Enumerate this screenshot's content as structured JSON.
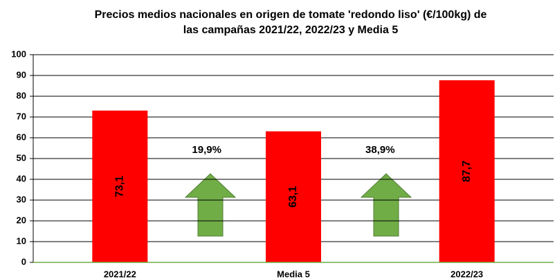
{
  "chart_data": {
    "type": "bar",
    "title": [
      "Precios medios nacionales en origen de tomate 'redondo liso' (€/100kg) de",
      "las campañas 2021/22, 2022/23 y Media 5"
    ],
    "categories": [
      "2021/22",
      "Media 5",
      "2022/23"
    ],
    "values": [
      73.1,
      63.1,
      87.7
    ],
    "value_labels": [
      "73,1",
      "63,1",
      "87,7"
    ],
    "color": "#ff0000",
    "annotations": [
      "19,9%",
      "38,9%"
    ],
    "ylim": [
      0,
      100
    ],
    "yticks": [
      0,
      10,
      20,
      30,
      40,
      50,
      60,
      70,
      80,
      90,
      100
    ],
    "grid": true
  }
}
